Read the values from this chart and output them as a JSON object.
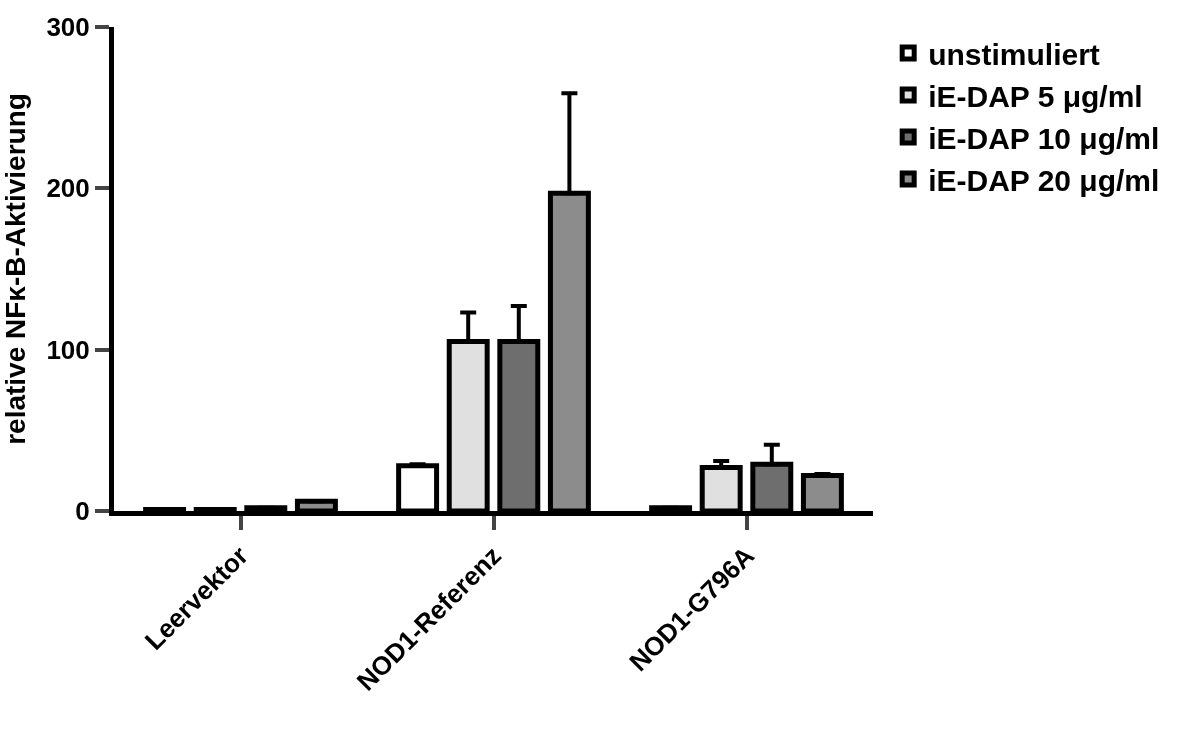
{
  "chart_data": {
    "type": "bar",
    "ylabel": "relative NFκ-B-Aktivierung",
    "categories": [
      "Leervektor",
      "NOD1-Referenz",
      "NOD1-G796A"
    ],
    "series": [
      {
        "name": "unstimuliert",
        "color": "#ffffff",
        "values": [
          1,
          28,
          2
        ],
        "errors": [
          null,
          1,
          null
        ]
      },
      {
        "name": "iE-DAP 5 μg/ml",
        "color": "#e0e0e0",
        "values": [
          1,
          105,
          27
        ],
        "errors": [
          null,
          18,
          4
        ]
      },
      {
        "name": "iE-DAP 10 μg/ml",
        "color": "#6e6e6e",
        "values": [
          2,
          105,
          29
        ],
        "errors": [
          null,
          22,
          12
        ]
      },
      {
        "name": "iE-DAP 20 μg/ml",
        "color": "#8c8c8c",
        "values": [
          6,
          197,
          22
        ],
        "errors": [
          null,
          62,
          1
        ]
      }
    ],
    "ylim": [
      0,
      300
    ],
    "yticks": [
      0,
      100,
      200,
      300
    ],
    "grid": false,
    "legend": "top right"
  }
}
